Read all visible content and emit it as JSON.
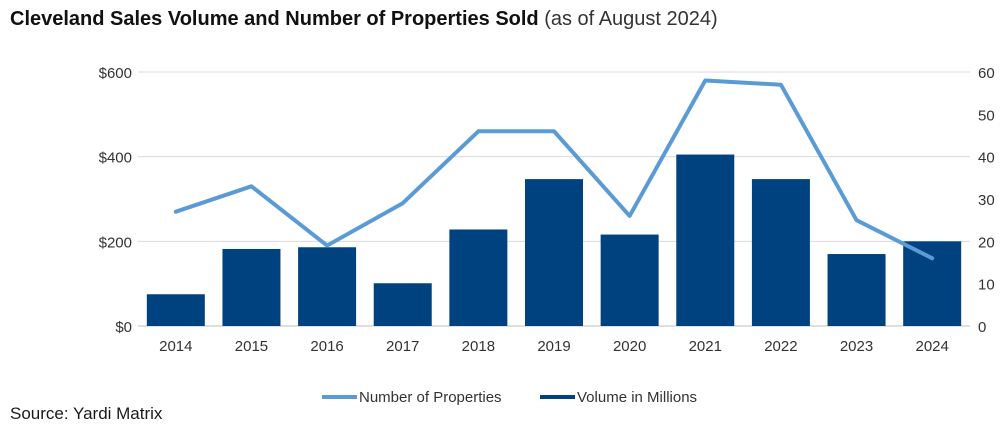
{
  "title": "Cleveland Sales Volume and Number of Properties Sold",
  "subtitle": "(as of August 2024)",
  "source": "Source: Yardi Matrix",
  "colors": {
    "bar": "#004280",
    "line": "#5b9bd5",
    "grid": "#d9d9d9",
    "text": "#333333"
  },
  "chart_data": {
    "type": "bar",
    "categories": [
      "2014",
      "2015",
      "2016",
      "2017",
      "2018",
      "2019",
      "2020",
      "2021",
      "2022",
      "2023",
      "2024"
    ],
    "series": [
      {
        "name": "Volume in Millions",
        "type": "bar",
        "axis": "left",
        "values": [
          75,
          182,
          186,
          101,
          228,
          347,
          216,
          405,
          347,
          170,
          200
        ]
      },
      {
        "name": "Number of Properties",
        "type": "line",
        "axis": "right",
        "values": [
          27,
          33,
          19,
          29,
          46,
          46,
          26,
          58,
          57,
          25,
          16
        ]
      }
    ],
    "y_left": {
      "ticks": [
        "$0",
        "$200",
        "$400",
        "$600"
      ],
      "min": 0,
      "max": 600,
      "step": 200
    },
    "y_right": {
      "ticks": [
        "0",
        "10",
        "20",
        "30",
        "40",
        "50",
        "60"
      ],
      "min": 0,
      "max": 60,
      "step": 10
    },
    "grid": true,
    "legend": {
      "position": "bottom",
      "items": [
        "Number of Properties",
        "Volume in Millions"
      ]
    }
  }
}
